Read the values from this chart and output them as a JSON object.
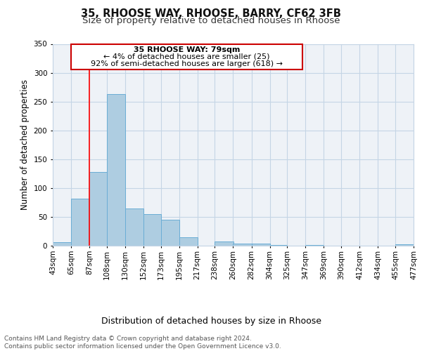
{
  "title1": "35, RHOOSE WAY, RHOOSE, BARRY, CF62 3FB",
  "title2": "Size of property relative to detached houses in Rhoose",
  "xlabel": "Distribution of detached houses by size in Rhoose",
  "ylabel": "Number of detached properties",
  "bin_edges": [
    43,
    65,
    87,
    108,
    130,
    152,
    173,
    195,
    217,
    238,
    260,
    282,
    304,
    325,
    347,
    369,
    390,
    412,
    434,
    455,
    477
  ],
  "bin_labels": [
    "43sqm",
    "65sqm",
    "87sqm",
    "108sqm",
    "130sqm",
    "152sqm",
    "173sqm",
    "195sqm",
    "217sqm",
    "238sqm",
    "260sqm",
    "282sqm",
    "304sqm",
    "325sqm",
    "347sqm",
    "369sqm",
    "390sqm",
    "412sqm",
    "434sqm",
    "455sqm",
    "477sqm"
  ],
  "bar_heights": [
    6,
    81,
    128,
    263,
    64,
    55,
    45,
    15,
    0,
    7,
    4,
    4,
    1,
    0,
    1,
    0,
    0,
    0,
    0,
    2
  ],
  "bar_color": "#aecde1",
  "bar_edge_color": "#6aadd5",
  "ylim": [
    0,
    350
  ],
  "yticks": [
    0,
    50,
    100,
    150,
    200,
    250,
    300,
    350
  ],
  "red_line_x": 87,
  "ann_line1": "35 RHOOSE WAY: 79sqm",
  "ann_line2": "← 4% of detached houses are smaller (25)",
  "ann_line3": "92% of semi-detached houses are larger (618) →",
  "footer_text": "Contains HM Land Registry data © Crown copyright and database right 2024.\nContains public sector information licensed under the Open Government Licence v3.0.",
  "background_color": "#eef2f7",
  "grid_color": "#c5d5e5",
  "title_fontsize": 10.5,
  "subtitle_fontsize": 9.5,
  "axis_label_fontsize": 8.5,
  "tick_fontsize": 7.5,
  "annotation_fontsize": 8,
  "footer_fontsize": 6.5
}
